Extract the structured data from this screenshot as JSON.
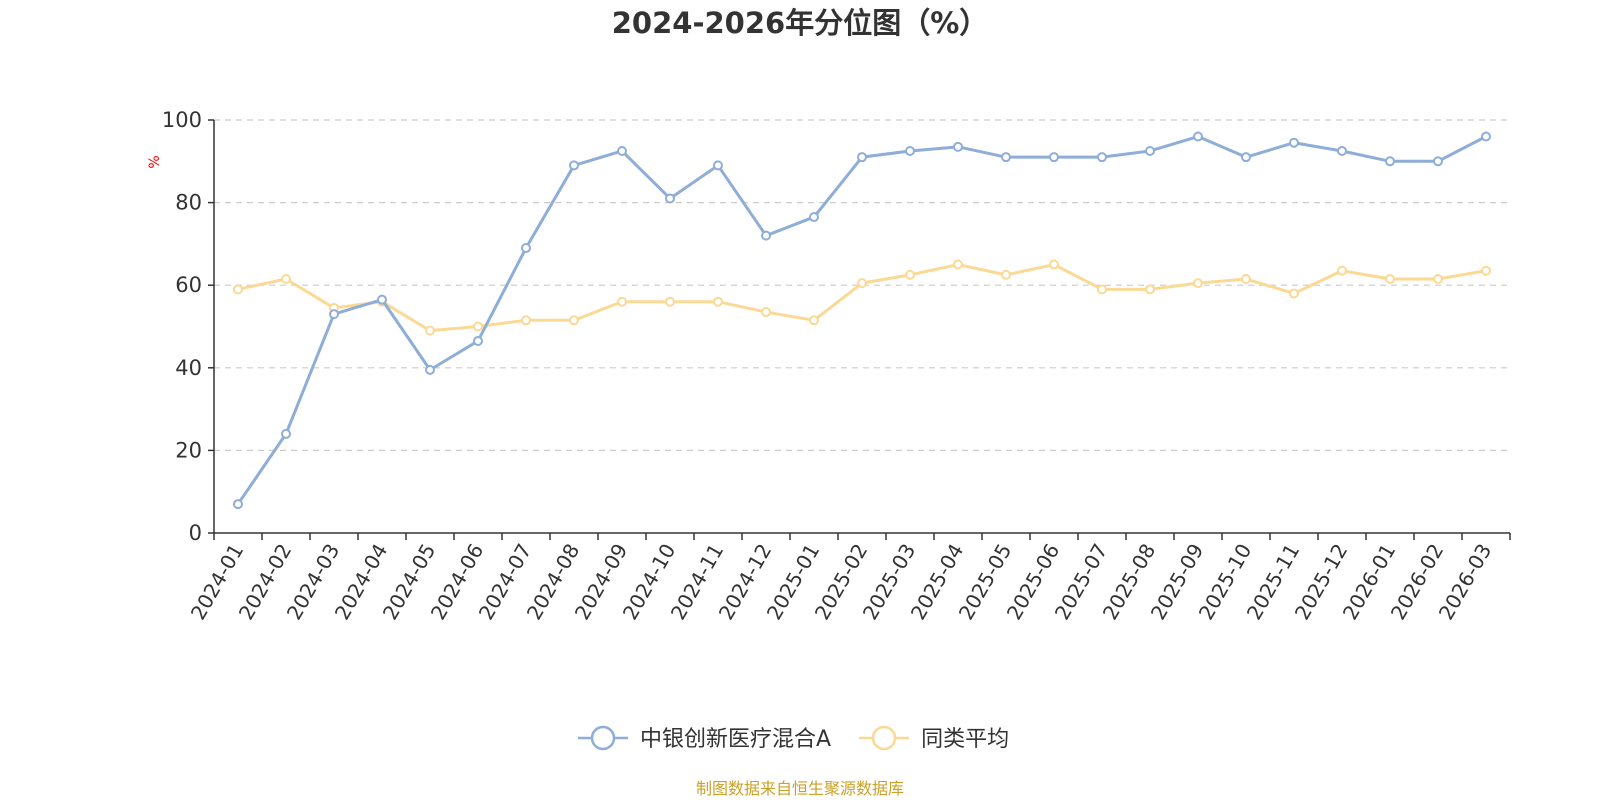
{
  "chart_data": {
    "type": "line",
    "title": "2024-2026年分位图（%）",
    "ylabel": "%",
    "ylim": [
      0,
      100
    ],
    "yticks": [
      0,
      20,
      40,
      60,
      80,
      100
    ],
    "grid": true,
    "legend_position": "bottom",
    "categories": [
      "2024-01",
      "2024-02",
      "2024-03",
      "2024-04",
      "2024-05",
      "2024-06",
      "2024-07",
      "2024-08",
      "2024-09",
      "2024-10",
      "2024-11",
      "2024-12",
      "2025-01",
      "2025-02",
      "2025-03",
      "2025-04",
      "2025-05",
      "2025-06",
      "2025-07",
      "2025-08",
      "2025-09",
      "2025-10",
      "2025-11",
      "2025-12",
      "2026-01",
      "2026-02",
      "2026-03"
    ],
    "series": [
      {
        "name": "中银创新医疗混合A",
        "color": "#8eadd8",
        "values": [
          7,
          24,
          53,
          56.5,
          39.5,
          46.5,
          69,
          89,
          92.5,
          81,
          89,
          72,
          76.5,
          91,
          92.5,
          93.5,
          91,
          91,
          91,
          92.5,
          96,
          91,
          94.5,
          92.5,
          90,
          90,
          96
        ]
      },
      {
        "name": "同类平均",
        "color": "#fbd995",
        "values": [
          59,
          61.5,
          54.5,
          56,
          49,
          50,
          51.5,
          51.5,
          56,
          56,
          56,
          53.5,
          51.5,
          60.5,
          62.5,
          65,
          62.5,
          65,
          59,
          59,
          60.5,
          61.5,
          58,
          63.5,
          61.5,
          61.5,
          63.5
        ]
      }
    ],
    "y_label_color": "#ff0000"
  },
  "footer": {
    "source": "制图数据来自恒生聚源数据库",
    "source_color": "#c9a227"
  }
}
